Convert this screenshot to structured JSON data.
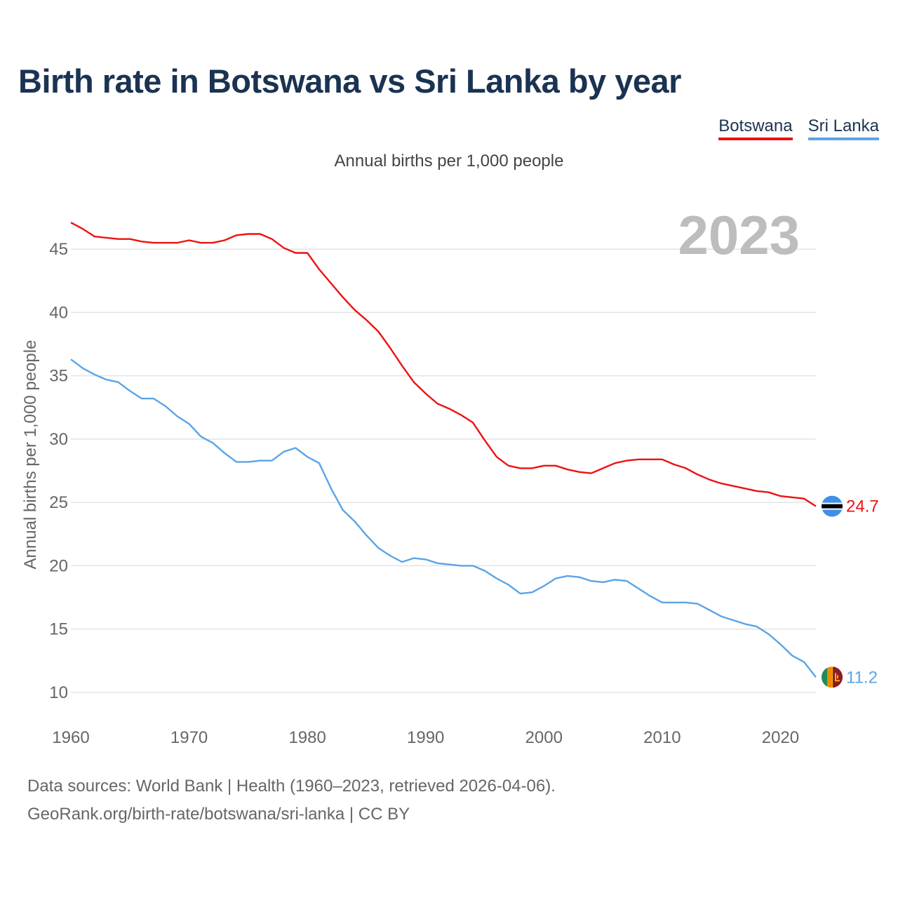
{
  "title": "Birth rate in Botswana vs Sri Lanka by year",
  "subtitle": "Annual births per 1,000 people",
  "legend": [
    {
      "label": "Botswana",
      "color": "#ee1111"
    },
    {
      "label": "Sri Lanka",
      "color": "#5ba4e6"
    }
  ],
  "year_overlay": "2023",
  "source_line1": "Data sources: World Bank | Health (1960–2023, retrieved 2026-04-06).",
  "source_line2": "GeoRank.org/birth-rate/botswana/sri-lanka | CC BY",
  "chart_data": {
    "type": "line",
    "title": "Birth rate in Botswana vs Sri Lanka by year",
    "subtitle": "Annual births per 1,000 people",
    "xlabel": "",
    "ylabel": "Annual births per 1,000 people",
    "xlim": [
      1960,
      2023
    ],
    "ylim": [
      8.5,
      47.5
    ],
    "xticks": [
      1960,
      1970,
      1980,
      1990,
      2000,
      2010,
      2020
    ],
    "yticks": [
      10,
      15,
      20,
      25,
      30,
      35,
      40,
      45
    ],
    "grid": true,
    "legend_position": "top-right",
    "x": [
      1960,
      1961,
      1962,
      1963,
      1964,
      1965,
      1966,
      1967,
      1968,
      1969,
      1970,
      1971,
      1972,
      1973,
      1974,
      1975,
      1976,
      1977,
      1978,
      1979,
      1980,
      1981,
      1982,
      1983,
      1984,
      1985,
      1986,
      1987,
      1988,
      1989,
      1990,
      1991,
      1992,
      1993,
      1994,
      1995,
      1996,
      1997,
      1998,
      1999,
      2000,
      2001,
      2002,
      2003,
      2004,
      2005,
      2006,
      2007,
      2008,
      2009,
      2010,
      2011,
      2012,
      2013,
      2014,
      2015,
      2016,
      2017,
      2018,
      2019,
      2020,
      2021,
      2022,
      2023
    ],
    "series": [
      {
        "name": "Botswana",
        "color": "#ee1111",
        "end_label": "24.7",
        "values": [
          47.1,
          46.6,
          46.0,
          45.9,
          45.8,
          45.8,
          45.6,
          45.5,
          45.5,
          45.5,
          45.7,
          45.5,
          45.5,
          45.7,
          46.1,
          46.2,
          46.2,
          45.8,
          45.1,
          44.7,
          44.7,
          43.4,
          42.3,
          41.2,
          40.2,
          39.4,
          38.5,
          37.2,
          35.8,
          34.5,
          33.6,
          32.8,
          32.4,
          31.9,
          31.3,
          29.9,
          28.6,
          27.9,
          27.7,
          27.7,
          27.9,
          27.9,
          27.6,
          27.4,
          27.3,
          27.7,
          28.1,
          28.3,
          28.4,
          28.4,
          28.4,
          28.0,
          27.7,
          27.2,
          26.8,
          26.5,
          26.3,
          26.1,
          25.9,
          25.8,
          25.5,
          25.4,
          25.3,
          24.7
        ]
      },
      {
        "name": "Sri Lanka",
        "color": "#5ba4e6",
        "end_label": "11.2",
        "values": [
          36.3,
          35.6,
          35.1,
          34.7,
          34.5,
          33.8,
          33.2,
          33.2,
          32.6,
          31.8,
          31.2,
          30.2,
          29.7,
          28.9,
          28.2,
          28.2,
          28.3,
          28.3,
          29.0,
          29.3,
          28.6,
          28.1,
          26.1,
          24.4,
          23.5,
          22.4,
          21.4,
          20.8,
          20.3,
          20.6,
          20.5,
          20.2,
          20.1,
          20.0,
          20.0,
          19.6,
          19.0,
          18.5,
          17.8,
          17.9,
          18.4,
          19.0,
          19.2,
          19.1,
          18.8,
          18.7,
          18.9,
          18.8,
          18.2,
          17.6,
          17.1,
          17.1,
          17.1,
          17.0,
          16.5,
          16.0,
          15.7,
          15.4,
          15.2,
          14.6,
          13.8,
          12.9,
          12.4,
          11.2
        ]
      }
    ]
  }
}
